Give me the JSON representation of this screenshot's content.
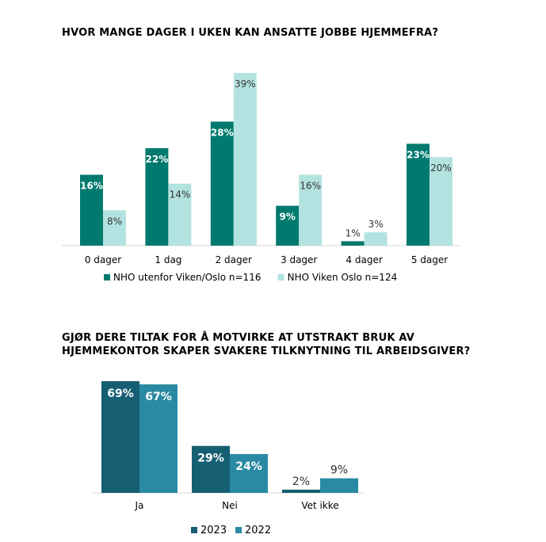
{
  "chart_data": [
    {
      "type": "bar",
      "title": "HVOR MANGE DAGER I UKEN KAN ANSATTE JOBBE HJEMMEFRA?",
      "categories": [
        "0 dager",
        "1 dag",
        "2 dager",
        "3 dager",
        "4 dager",
        "5 dager"
      ],
      "series": [
        {
          "name": "NHO utenfor Viken/Oslo n=116",
          "values": [
            16,
            22,
            28,
            9,
            1,
            23
          ],
          "color": "#007a6e",
          "label_color": "#ffffff"
        },
        {
          "name": "NHO Viken Oslo n=124",
          "values": [
            8,
            14,
            39,
            16,
            3,
            20
          ],
          "color": "#b3e3e0",
          "label_color": "#333333"
        }
      ],
      "unit": "%",
      "ylim": [
        0,
        39
      ],
      "legend": "bottom",
      "grid": false
    },
    {
      "type": "bar",
      "title": "GJØR DERE TILTAK FOR Å MOTVIRKE AT UTSTRAKT BRUK AV HJEMMEKONTOR SKAPER SVAKERE TILKNYTNING TIL ARBEIDSGIVER?",
      "categories": [
        "Ja",
        "Nei",
        "Vet ikke"
      ],
      "series": [
        {
          "name": "2023",
          "values": [
            69,
            29,
            2
          ],
          "color": "#165f72",
          "label_color": "#ffffff"
        },
        {
          "name": "2022",
          "values": [
            67,
            24,
            9
          ],
          "color": "#2a8aa3",
          "label_color": "#ffffff"
        }
      ],
      "unit": "%",
      "ylim": [
        0,
        69
      ],
      "legend": "bottom",
      "grid": false
    }
  ]
}
